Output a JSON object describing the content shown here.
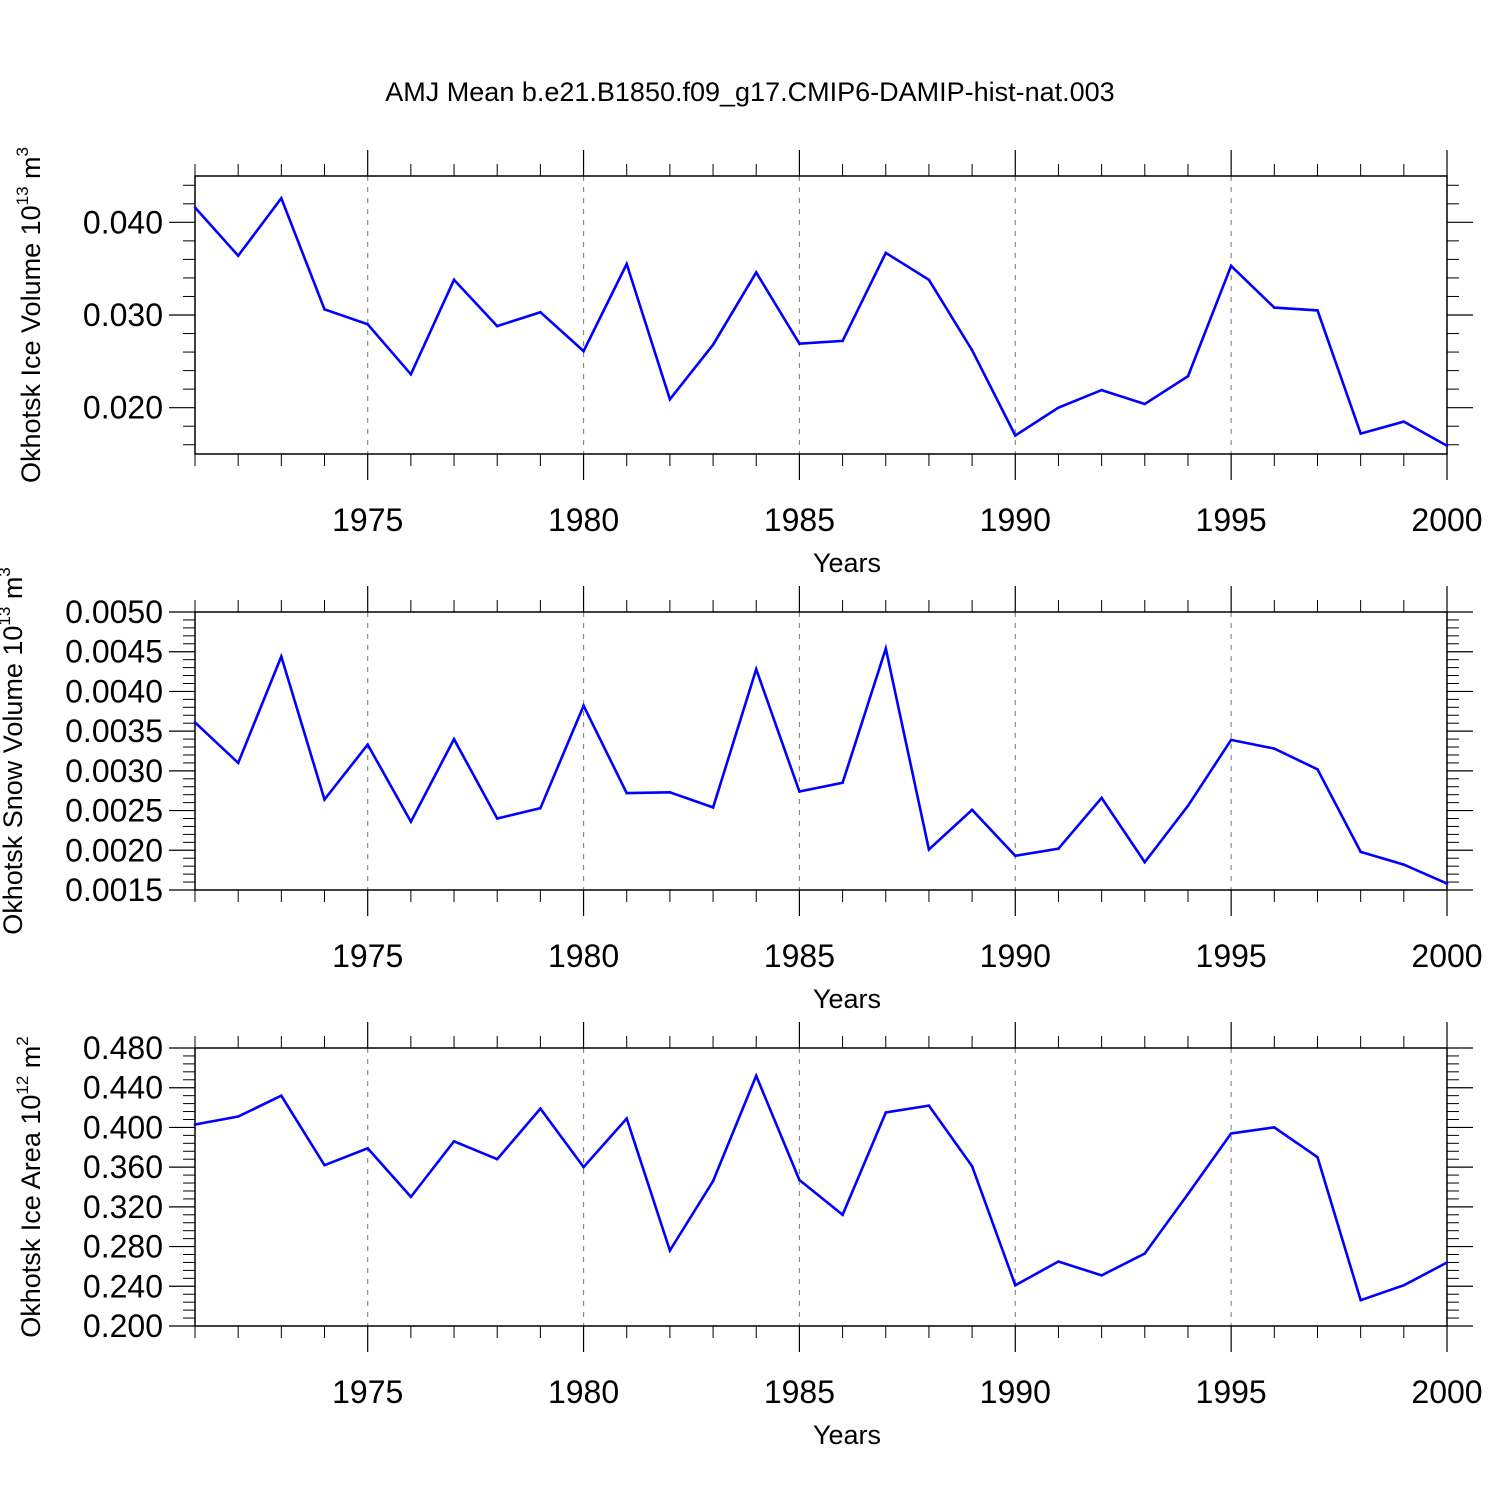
{
  "title": "AMJ Mean b.e21.B1850.f09_g17.CMIP6-DAMIP-hist-nat.003",
  "colors": {
    "series": "#0000ff",
    "axes": "#000000",
    "grid": "#8c8c8c"
  },
  "chart_data": [
    {
      "type": "line",
      "ylabel": "Okhotsk Ice Volume 10",
      "ylabel_exponent": "13",
      "ylabel_unit": "m",
      "ylabel_unit_power": "3",
      "xlabel": "Years",
      "xlim": [
        1971,
        2000
      ],
      "ylim": [
        0.015,
        0.045
      ],
      "y_ticks": [
        "0.020",
        "0.030",
        "0.040"
      ],
      "x_ticks": [
        "1975",
        "1980",
        "1985",
        "1990",
        "1995",
        "2000"
      ],
      "x": [
        1971,
        1972,
        1973,
        1974,
        1975,
        1976,
        1977,
        1978,
        1979,
        1980,
        1981,
        1982,
        1983,
        1984,
        1985,
        1986,
        1987,
        1988,
        1989,
        1990,
        1991,
        1992,
        1993,
        1994,
        1995,
        1996,
        1997,
        1998,
        1999,
        2000
      ],
      "values": [
        0.0416,
        0.0364,
        0.0426,
        0.0306,
        0.029,
        0.0236,
        0.0338,
        0.0288,
        0.0303,
        0.0261,
        0.0355,
        0.0209,
        0.0268,
        0.0346,
        0.0269,
        0.0272,
        0.0367,
        0.0338,
        0.0262,
        0.017,
        0.02,
        0.0219,
        0.0204,
        0.0234,
        0.0353,
        0.0308,
        0.0305,
        0.0172,
        0.0185,
        0.0159
      ]
    },
    {
      "type": "line",
      "ylabel": "Okhotsk Snow Volume 10",
      "ylabel_exponent": "13",
      "ylabel_unit": "m",
      "ylabel_unit_power": "3",
      "xlabel": "Years",
      "xlim": [
        1971,
        2000
      ],
      "ylim": [
        0.0015,
        0.005
      ],
      "y_ticks": [
        "0.0015",
        "0.0020",
        "0.0025",
        "0.0030",
        "0.0035",
        "0.0040",
        "0.0045",
        "0.0050"
      ],
      "x_ticks": [
        "1975",
        "1980",
        "1985",
        "1990",
        "1995",
        "2000"
      ],
      "x": [
        1971,
        1972,
        1973,
        1974,
        1975,
        1976,
        1977,
        1978,
        1979,
        1980,
        1981,
        1982,
        1983,
        1984,
        1985,
        1986,
        1987,
        1988,
        1989,
        1990,
        1991,
        1992,
        1993,
        1994,
        1995,
        1996,
        1997,
        1998,
        1999,
        2000
      ],
      "values": [
        0.00361,
        0.0031,
        0.00444,
        0.00264,
        0.00333,
        0.00236,
        0.0034,
        0.0024,
        0.00253,
        0.00382,
        0.00272,
        0.00273,
        0.00254,
        0.00428,
        0.00274,
        0.00285,
        0.00454,
        0.00201,
        0.00251,
        0.00193,
        0.00202,
        0.00266,
        0.00185,
        0.00256,
        0.00339,
        0.00328,
        0.00302,
        0.00198,
        0.00182,
        0.00158
      ]
    },
    {
      "type": "line",
      "ylabel": "Okhotsk Ice Area 10",
      "ylabel_exponent": "12",
      "ylabel_unit": "m",
      "ylabel_unit_power": "2",
      "xlabel": "Years",
      "xlim": [
        1971,
        2000
      ],
      "ylim": [
        0.2,
        0.48
      ],
      "y_ticks": [
        "0.200",
        "0.240",
        "0.280",
        "0.320",
        "0.360",
        "0.400",
        "0.440",
        "0.480"
      ],
      "x_ticks": [
        "1975",
        "1980",
        "1985",
        "1990",
        "1995",
        "2000"
      ],
      "x": [
        1971,
        1972,
        1973,
        1974,
        1975,
        1976,
        1977,
        1978,
        1979,
        1980,
        1981,
        1982,
        1983,
        1984,
        1985,
        1986,
        1987,
        1988,
        1989,
        1990,
        1991,
        1992,
        1993,
        1994,
        1995,
        1996,
        1997,
        1998,
        1999,
        2000
      ],
      "values": [
        0.403,
        0.411,
        0.432,
        0.362,
        0.379,
        0.33,
        0.386,
        0.368,
        0.419,
        0.36,
        0.409,
        0.276,
        0.346,
        0.452,
        0.347,
        0.312,
        0.415,
        0.422,
        0.361,
        0.241,
        0.265,
        0.251,
        0.273,
        0.333,
        0.394,
        0.4,
        0.37,
        0.226,
        0.241,
        0.264
      ]
    }
  ]
}
